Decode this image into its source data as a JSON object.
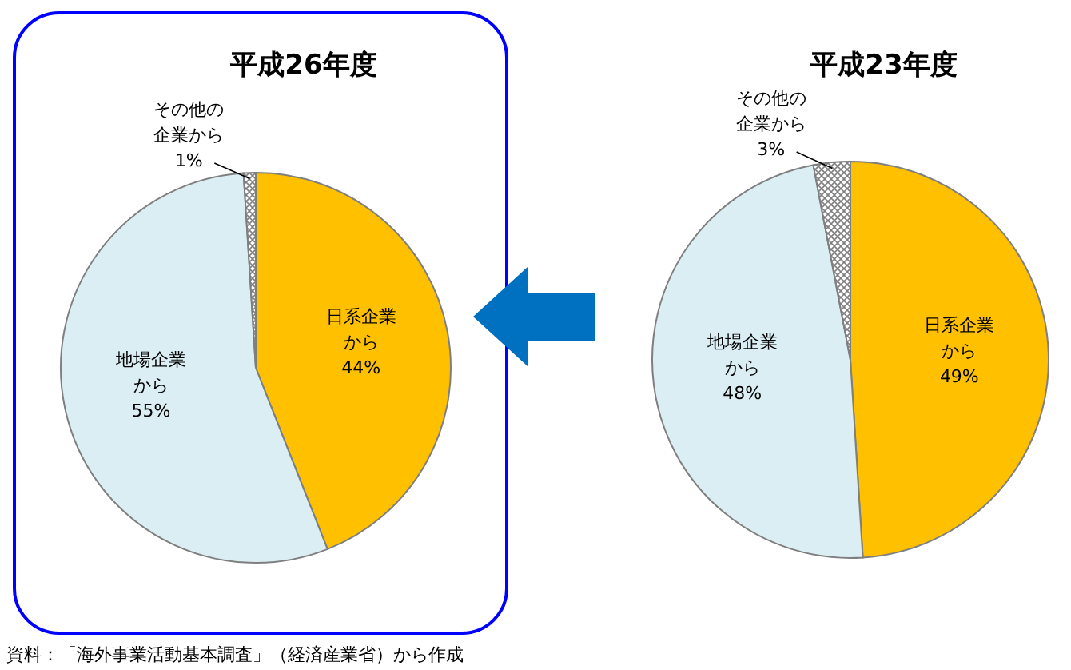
{
  "chart_data": [
    {
      "type": "pie",
      "title": "平成26年度",
      "categories": [
        "日系企業から",
        "地場企業から",
        "その他の企業から"
      ],
      "values": [
        44,
        55,
        1
      ],
      "colors": [
        "#ffc000",
        "#dbeef4",
        "#7f7f7f"
      ],
      "value_labels": [
        "44%",
        "55%",
        "1%"
      ]
    },
    {
      "type": "pie",
      "title": "平成23年度",
      "categories": [
        "日系企業から",
        "地場企業から",
        "その他の企業から"
      ],
      "values": [
        49,
        48,
        3
      ],
      "colors": [
        "#ffc000",
        "#dbeef4",
        "#7f7f7f"
      ],
      "value_labels": [
        "49%",
        "48%",
        "3%"
      ],
      "annotations": [
        "資料：「海外事業活動基本調査」（経済産業省）から作成"
      ]
    }
  ]
}
